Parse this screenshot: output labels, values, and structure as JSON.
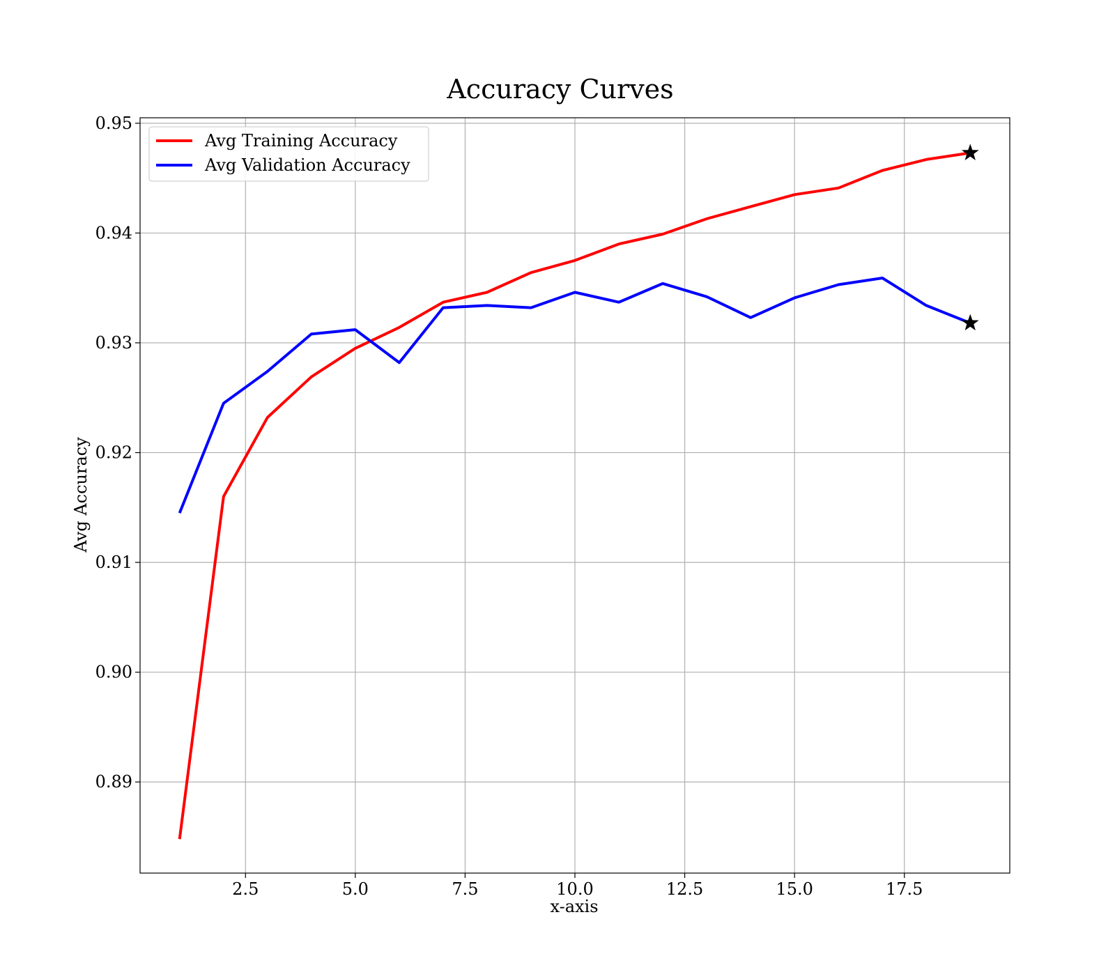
{
  "chart_data": {
    "type": "line",
    "title": "Accuracy Curves",
    "xlabel": "x-axis",
    "ylabel": "Avg Accuracy",
    "xlim": [
      0.1,
      19.9
    ],
    "ylim": [
      0.8817,
      0.9505
    ],
    "xticks": [
      2.5,
      5.0,
      7.5,
      10.0,
      12.5,
      15.0,
      17.5
    ],
    "xtick_labels": [
      "2.5",
      "5.0",
      "7.5",
      "10.0",
      "12.5",
      "15.0",
      "17.5"
    ],
    "yticks": [
      0.89,
      0.9,
      0.91,
      0.92,
      0.93,
      0.94,
      0.95
    ],
    "ytick_labels": [
      "0.89",
      "0.90",
      "0.91",
      "0.92",
      "0.93",
      "0.94",
      "0.95"
    ],
    "grid": true,
    "legend_position": "upper-left",
    "x": [
      1,
      2,
      3,
      4,
      5,
      6,
      7,
      8,
      9,
      10,
      11,
      12,
      13,
      14,
      15,
      16,
      17,
      18,
      19
    ],
    "series": [
      {
        "name": "Avg Training Accuracy",
        "color": "#ff0000",
        "values": [
          0.8848,
          0.916,
          0.9232,
          0.9269,
          0.9295,
          0.9314,
          0.9337,
          0.9346,
          0.9364,
          0.9375,
          0.939,
          0.9399,
          0.9413,
          0.9424,
          0.9435,
          0.9441,
          0.9457,
          0.9467,
          0.9473
        ]
      },
      {
        "name": "Avg Validation Accuracy",
        "color": "#0000ff",
        "values": [
          0.9145,
          0.9245,
          0.9274,
          0.9308,
          0.9312,
          0.9282,
          0.9332,
          0.9334,
          0.9332,
          0.9346,
          0.9337,
          0.9354,
          0.9342,
          0.9323,
          0.9341,
          0.9353,
          0.9359,
          0.9334,
          0.9318
        ]
      }
    ],
    "markers": [
      {
        "series": "Avg Training Accuracy",
        "x": 19,
        "y": 0.9473,
        "shape": "star",
        "color": "#000000"
      },
      {
        "series": "Avg Validation Accuracy",
        "x": 19,
        "y": 0.9318,
        "shape": "star",
        "color": "#000000"
      }
    ]
  }
}
